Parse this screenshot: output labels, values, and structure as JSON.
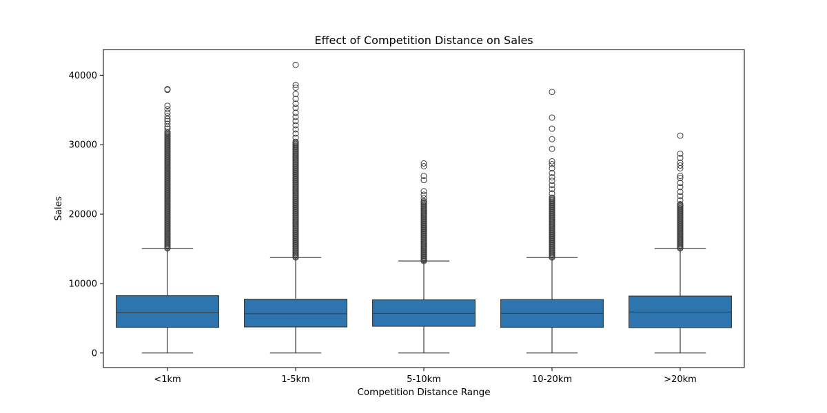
{
  "chart_data": {
    "type": "box",
    "title": "Effect of Competition Distance on Sales",
    "xlabel": "Competition Distance Range",
    "ylabel": "Sales",
    "ylim": [
      -2100,
      43700
    ],
    "yticks": [
      0,
      10000,
      20000,
      30000,
      40000
    ],
    "grid": false,
    "box_color": "#2e75b0",
    "line_color": "#3d3d3d",
    "categories": [
      "<1km",
      "1-5km",
      "5-10km",
      "10-20km",
      ">20km"
    ],
    "boxes": [
      {
        "category": "<1km",
        "whisker_low": 0,
        "q1": 3700,
        "median": 5800,
        "q3": 8250,
        "whisker_high": 15050,
        "outlier_dense_range": [
          15050,
          32000
        ],
        "outliers": [
          32300,
          32600,
          33000,
          33400,
          33700,
          34100,
          34600,
          35100,
          35600,
          37900,
          38000
        ]
      },
      {
        "category": "1-5km",
        "whisker_low": 0,
        "q1": 3750,
        "median": 5650,
        "q3": 7750,
        "whisker_high": 13750,
        "outlier_dense_range": [
          13750,
          30500
        ],
        "outliers": [
          31000,
          31600,
          32200,
          32800,
          33400,
          34000,
          34600,
          35300,
          35900,
          36600,
          37300,
          38200,
          38600,
          41500
        ]
      },
      {
        "category": "5-10km",
        "whisker_low": 0,
        "q1": 3850,
        "median": 5700,
        "q3": 7650,
        "whisker_high": 13250,
        "outlier_dense_range": [
          13250,
          22000
        ],
        "outliers": [
          22300,
          22800,
          23300,
          24900,
          25500,
          26900,
          27300
        ]
      },
      {
        "category": "10-20km",
        "whisker_low": 0,
        "q1": 3700,
        "median": 5700,
        "q3": 7700,
        "whisker_high": 13750,
        "outlier_dense_range": [
          13750,
          22500
        ],
        "outliers": [
          23000,
          23600,
          24200,
          24800,
          25300,
          25900,
          26600,
          27200,
          27600,
          29400,
          30800,
          32300,
          33900,
          37600
        ]
      },
      {
        "category": ">20km",
        "whisker_low": 0,
        "q1": 3650,
        "median": 5900,
        "q3": 8200,
        "whisker_high": 15050,
        "outlier_dense_range": [
          15050,
          21500
        ],
        "outliers": [
          22000,
          22600,
          23200,
          23900,
          24500,
          25200,
          25500,
          26600,
          27000,
          27400,
          28100,
          28700,
          31300
        ]
      }
    ]
  }
}
